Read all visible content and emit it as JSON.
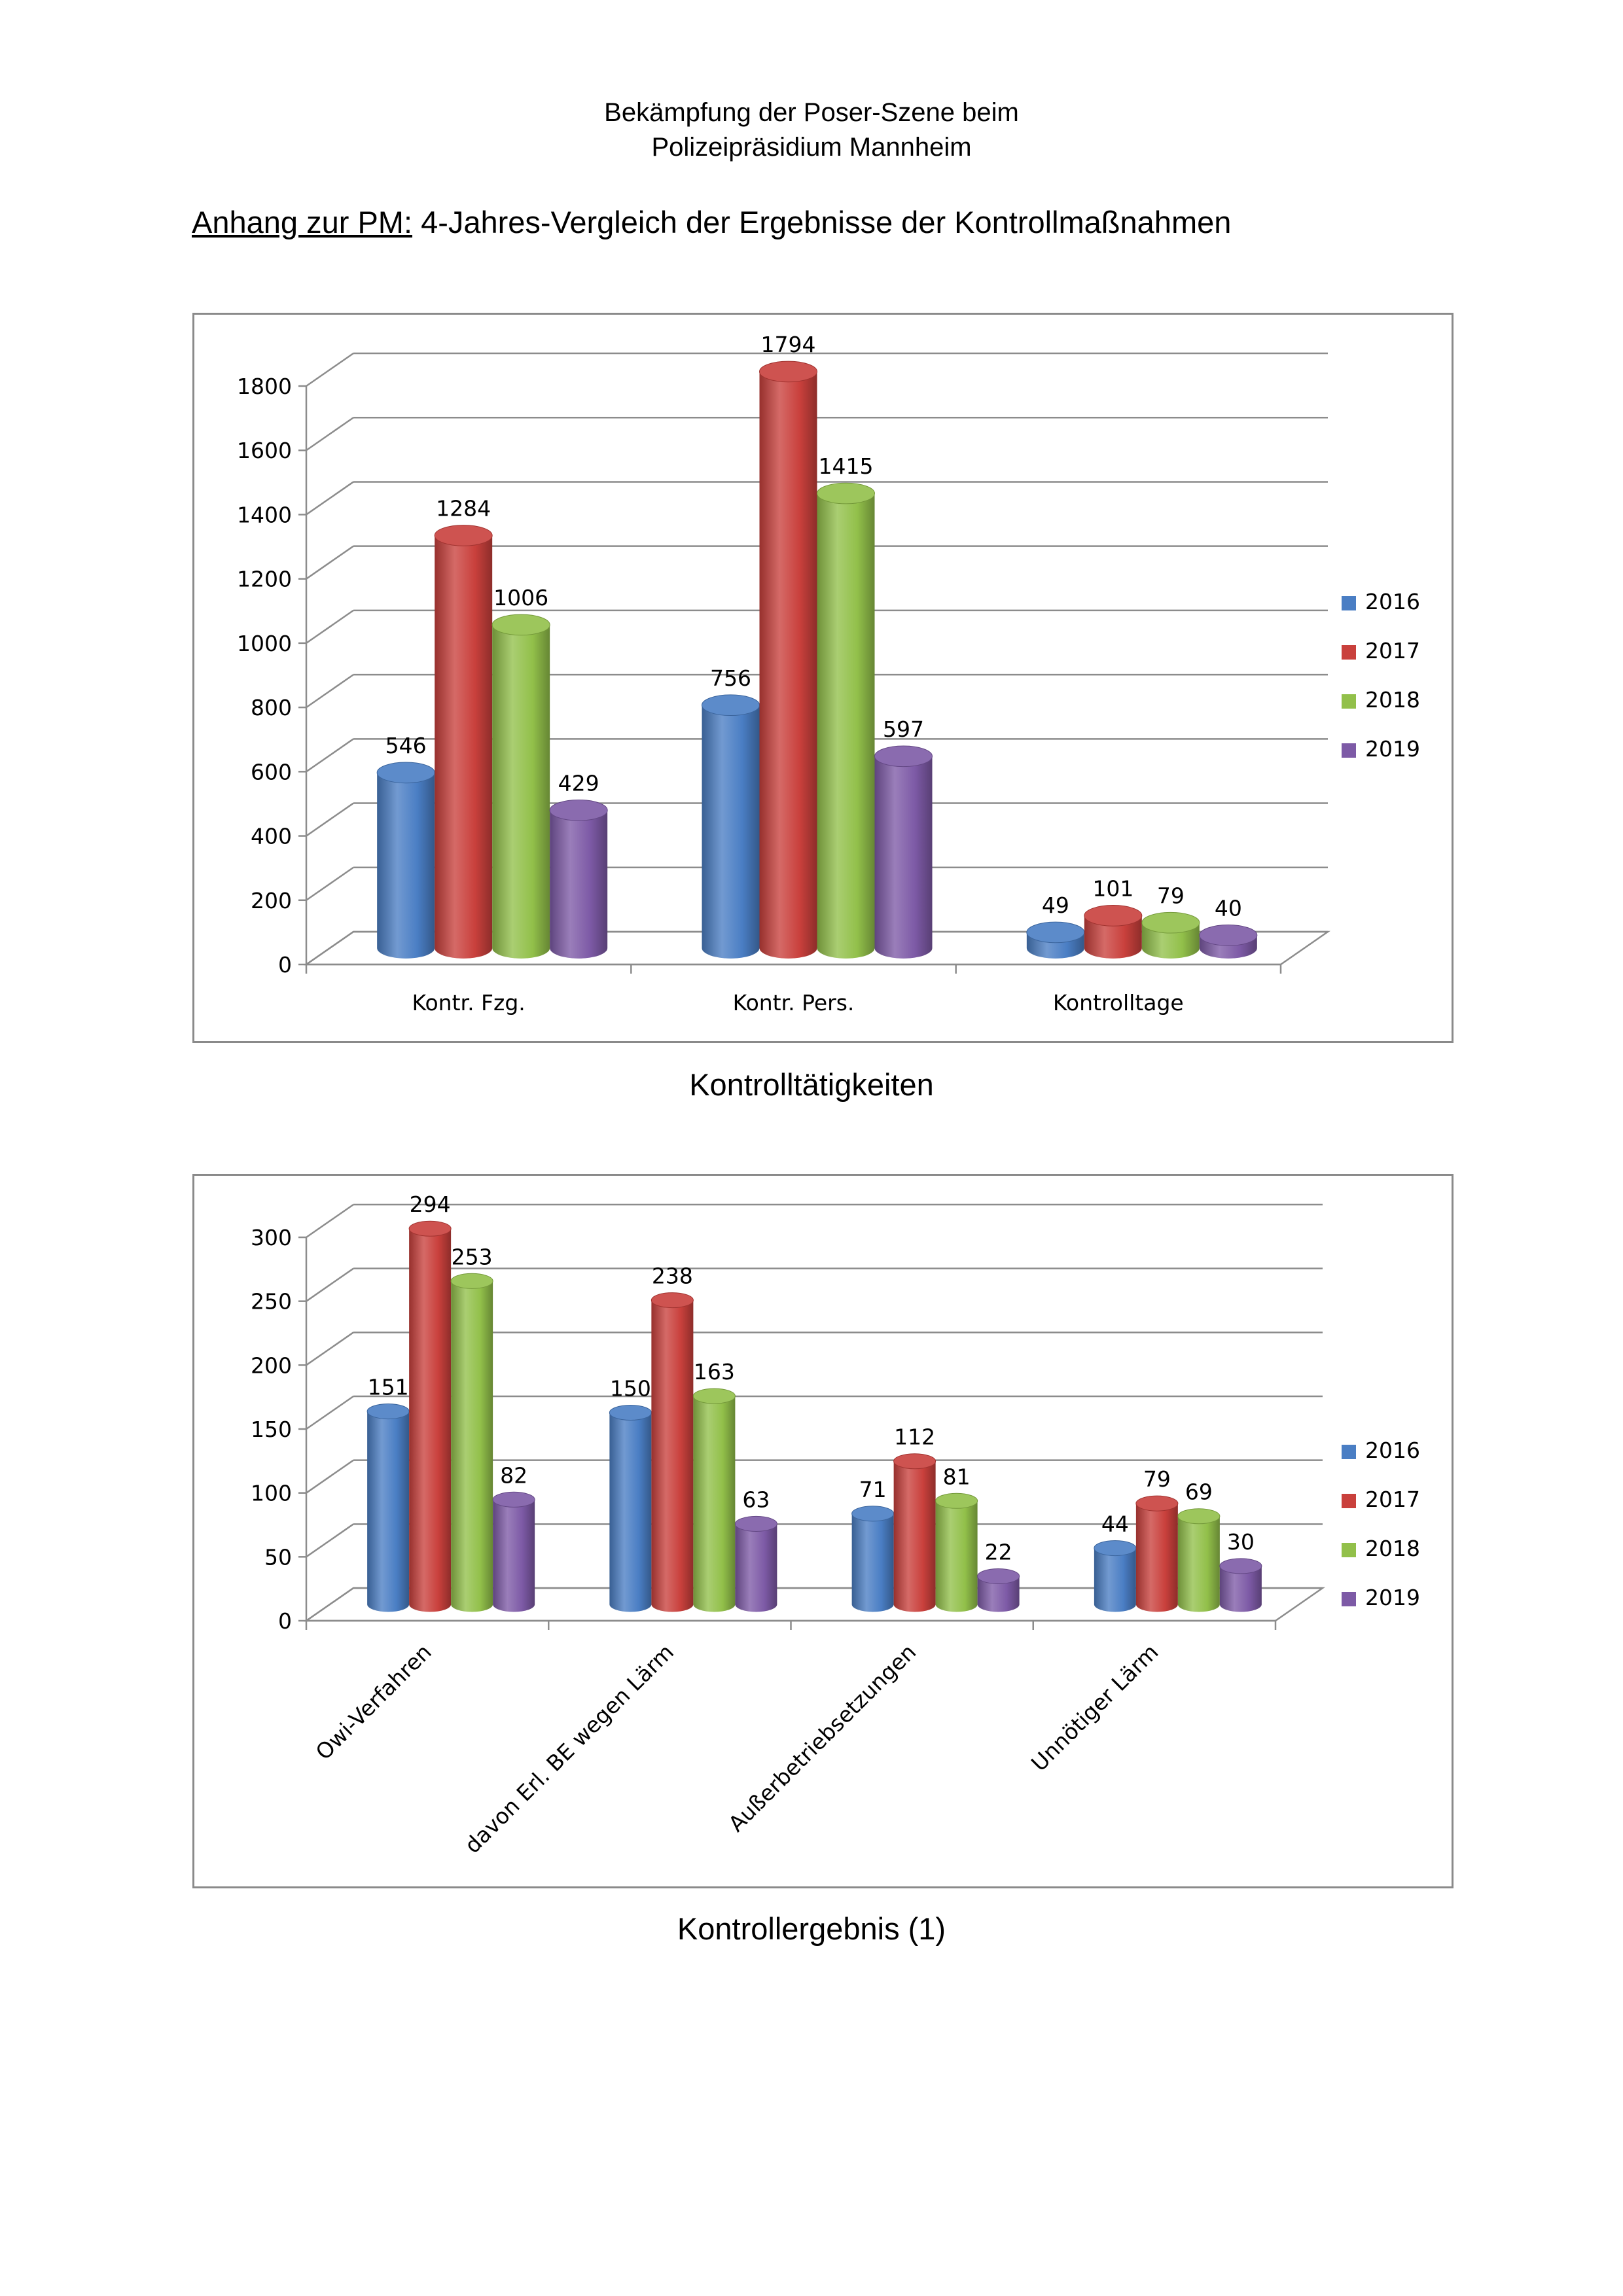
{
  "header": {
    "line1": "Bekämpfung der Poser-Szene beim",
    "line2": "Polizeipräsidium Mannheim"
  },
  "subtitle": {
    "label": "Anhang zur PM:",
    "text": " 4-Jahres-Vergleich der Ergebnisse der Kontrollmaßnahmen"
  },
  "colors": {
    "2016": "#4a7ec4",
    "2017": "#c9403c",
    "2018": "#92c04a",
    "2019": "#7d5aa6"
  },
  "chart_data": [
    {
      "type": "bar",
      "caption": "Kontrolltätigkeiten",
      "categories": [
        "Kontr. Fzg.",
        "Kontr. Pers.",
        "Kontrolltage"
      ],
      "series": [
        {
          "name": "2016",
          "values": [
            546,
            756,
            49
          ]
        },
        {
          "name": "2017",
          "values": [
            1284,
            1794,
            101
          ]
        },
        {
          "name": "2018",
          "values": [
            1006,
            1415,
            79
          ]
        },
        {
          "name": "2019",
          "values": [
            429,
            597,
            40
          ]
        }
      ],
      "ylim": [
        0,
        1800
      ],
      "yticks": [
        0,
        200,
        400,
        600,
        800,
        1000,
        1200,
        1400,
        1600,
        1800
      ],
      "grid": true,
      "legend": "right",
      "style": "3d-cylinder"
    },
    {
      "type": "bar",
      "caption": "Kontrollergebnis (1)",
      "categories": [
        "Owi-Verfahren",
        "davon Erl. BE wegen Lärm",
        "Außerbetriebsetzungen",
        "Unnötiger Lärm"
      ],
      "series": [
        {
          "name": "2016",
          "values": [
            151,
            150,
            71,
            44
          ]
        },
        {
          "name": "2017",
          "values": [
            294,
            238,
            112,
            79
          ]
        },
        {
          "name": "2018",
          "values": [
            253,
            163,
            81,
            69
          ]
        },
        {
          "name": "2019",
          "values": [
            82,
            63,
            22,
            30
          ]
        }
      ],
      "ylim": [
        0,
        300
      ],
      "yticks": [
        0,
        50,
        100,
        150,
        200,
        250,
        300
      ],
      "grid": true,
      "legend": "right",
      "tick_label_rotation": -45,
      "style": "3d-cylinder"
    }
  ]
}
